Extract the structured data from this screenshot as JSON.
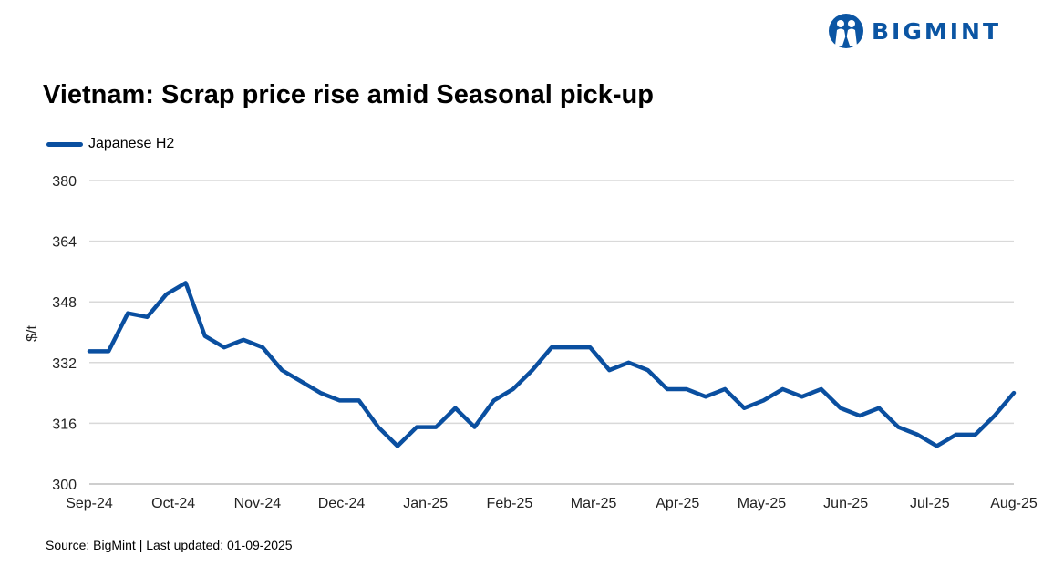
{
  "brand": {
    "name": "BIGMINT",
    "color": "#0b55a3"
  },
  "title": "Vietnam: Scrap price rise amid Seasonal pick-up",
  "source": "Source: BigMint | Last updated: 01-09-2025",
  "chart_data": {
    "type": "line",
    "title": "Vietnam: Scrap price rise amid Seasonal pick-up",
    "xlabel": "",
    "ylabel": "$/t",
    "ylim": [
      300,
      380
    ],
    "y_ticks": [
      300,
      316,
      332,
      348,
      364,
      380
    ],
    "x_tick_labels": [
      "Sep-24",
      "Oct-24",
      "Nov-24",
      "Dec-24",
      "Jan-25",
      "Feb-25",
      "Mar-25",
      "Apr-25",
      "May-25",
      "Jun-25",
      "Jul-25",
      "Aug-25"
    ],
    "grid": "horizontal",
    "legend": "top-left",
    "series": [
      {
        "name": "Japanese H2",
        "color": "#0a4fa0",
        "values": [
          335,
          335,
          345,
          344,
          350,
          353,
          339,
          336,
          338,
          336,
          330,
          327,
          324,
          322,
          322,
          315,
          310,
          315,
          315,
          320,
          315,
          322,
          325,
          330,
          336,
          336,
          336,
          330,
          332,
          330,
          325,
          325,
          323,
          325,
          320,
          322,
          325,
          323,
          325,
          320,
          318,
          320,
          315,
          313,
          310,
          313,
          313,
          318,
          324
        ]
      }
    ]
  }
}
